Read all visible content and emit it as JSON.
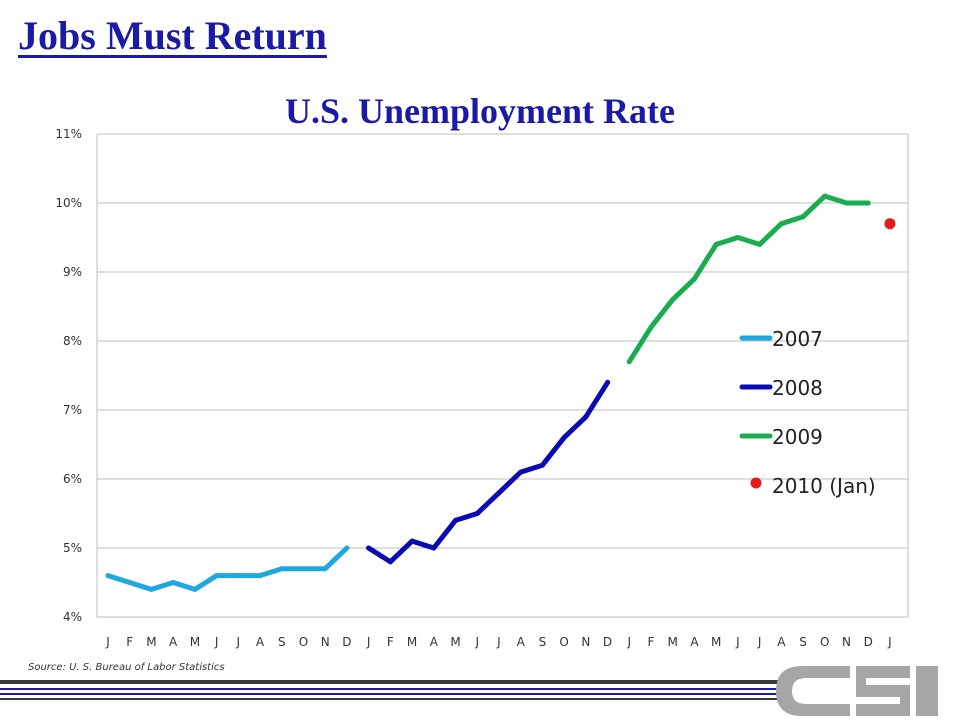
{
  "page": {
    "header": "Jobs Must Return",
    "source": "Source: U. S. Bureau of Labor Statistics",
    "colors": {
      "title": "#1a1aa6",
      "grid": "#bfbfbf",
      "logo": "#a6a6a6"
    },
    "logo": {
      "text": "CSI"
    }
  },
  "chart_data": {
    "type": "line",
    "title": "U.S. Unemployment Rate",
    "xlabel": "",
    "ylabel": "",
    "ylim": [
      4,
      11
    ],
    "yticks": [
      "4%",
      "5%",
      "6%",
      "7%",
      "8%",
      "9%",
      "10%",
      "11%"
    ],
    "xticks": [
      "J",
      "F",
      "M",
      "A",
      "M",
      "J",
      "J",
      "A",
      "S",
      "O",
      "N",
      "D",
      "J",
      "F",
      "M",
      "A",
      "M",
      "J",
      "J",
      "A",
      "S",
      "O",
      "N",
      "D",
      "J",
      "F",
      "M",
      "A",
      "M",
      "J",
      "J",
      "A",
      "S",
      "O",
      "N",
      "D",
      "J"
    ],
    "grid": true,
    "legend_position": "right",
    "series": [
      {
        "name": "2007",
        "color": "#1fa8e0",
        "style": "line",
        "start_index": 0,
        "values": [
          4.6,
          4.5,
          4.4,
          4.5,
          4.4,
          4.6,
          4.6,
          4.6,
          4.7,
          4.7,
          4.7,
          5.0
        ]
      },
      {
        "name": "2008",
        "color": "#0a0ab4",
        "style": "line",
        "start_index": 12,
        "values": [
          5.0,
          4.8,
          5.1,
          5.0,
          5.4,
          5.5,
          5.8,
          6.1,
          6.2,
          6.6,
          6.9,
          7.4
        ]
      },
      {
        "name": "2009",
        "color": "#1aad4f",
        "style": "line",
        "start_index": 24,
        "values": [
          7.7,
          8.2,
          8.6,
          8.9,
          9.4,
          9.5,
          9.4,
          9.7,
          9.8,
          10.1,
          10.0,
          10.0
        ]
      },
      {
        "name": "2010 (Jan)",
        "color": "#e21b1b",
        "style": "point",
        "start_index": 36,
        "values": [
          9.7
        ]
      }
    ]
  }
}
